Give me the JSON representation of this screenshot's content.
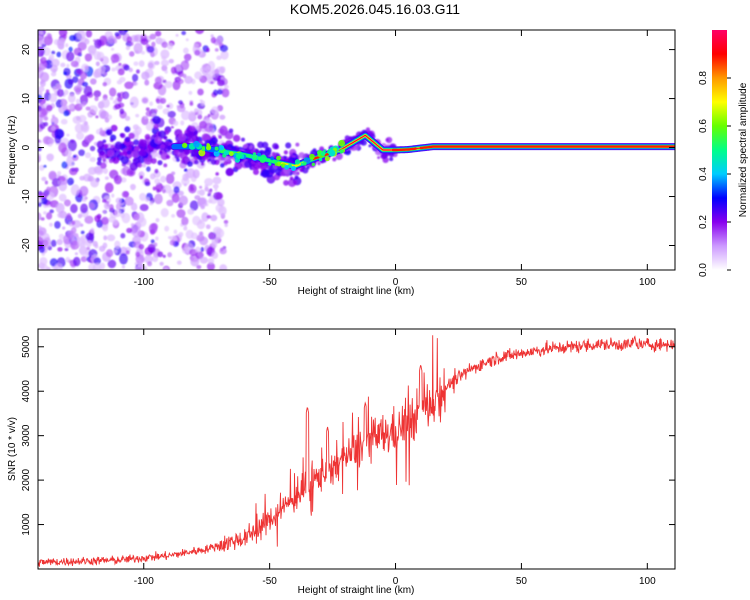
{
  "figure": {
    "title": "KOM5.2026.045.16.03.G11"
  },
  "chart_data": [
    {
      "type": "heatmap",
      "name": "spectrogram",
      "xlabel": "Height of straight line (km)",
      "ylabel": "Frequency (Hz)",
      "xlim": [
        -142,
        111
      ],
      "ylim": [
        -25,
        24
      ],
      "xticks": [
        -100,
        -50,
        0,
        50,
        100
      ],
      "yticks": [
        -20,
        -10,
        0,
        10,
        20
      ],
      "colorbar": {
        "label": "Normalized spectral amplitude",
        "range": [
          0,
          1
        ],
        "ticks": [
          0.0,
          0.2,
          0.4,
          0.6,
          0.8
        ],
        "colors": [
          "#ffffff",
          "#cc99ff",
          "#8800ee",
          "#0000ff",
          "#00ccff",
          "#00ff88",
          "#66ff00",
          "#ffff00",
          "#ff9900",
          "#ff0000",
          "#ff0066"
        ]
      },
      "ridge": {
        "description_points_km_hz": [
          [
            -80,
            0.2
          ],
          [
            -60,
            -1.5
          ],
          [
            -40,
            -3.8
          ],
          [
            -32,
            -2.2
          ],
          [
            -22,
            -0.5
          ],
          [
            -12,
            2.5
          ],
          [
            -5,
            -0.5
          ],
          [
            0,
            -0.5
          ],
          [
            5,
            -0.4
          ],
          [
            15,
            0.2
          ],
          [
            111,
            0.2
          ]
        ]
      }
    },
    {
      "type": "line",
      "name": "snr",
      "xlabel": "Height of straight line (km)",
      "ylabel": "SNR (10 * v/v)",
      "xlim": [
        -142,
        111
      ],
      "ylim": [
        0,
        5400
      ],
      "xticks": [
        -100,
        -50,
        0,
        50,
        100
      ],
      "yticks": [
        1000,
        2000,
        3000,
        4000,
        5000
      ],
      "color": "#ee3333",
      "trend_km_snr": [
        [
          -142,
          150
        ],
        [
          -110,
          200
        ],
        [
          -90,
          300
        ],
        [
          -75,
          450
        ],
        [
          -60,
          700
        ],
        [
          -50,
          1100
        ],
        [
          -40,
          1600
        ],
        [
          -30,
          2100
        ],
        [
          -20,
          2500
        ],
        [
          -10,
          2900
        ],
        [
          0,
          3100
        ],
        [
          10,
          3500
        ],
        [
          20,
          4100
        ],
        [
          30,
          4500
        ],
        [
          40,
          4750
        ],
        [
          60,
          4950
        ],
        [
          80,
          5050
        ],
        [
          111,
          5050
        ]
      ],
      "spikes_km_snr": [
        [
          -35,
          3650
        ],
        [
          -27,
          3200
        ],
        [
          -12,
          3750
        ],
        [
          10,
          4600
        ],
        [
          95,
          5250
        ]
      ]
    }
  ]
}
